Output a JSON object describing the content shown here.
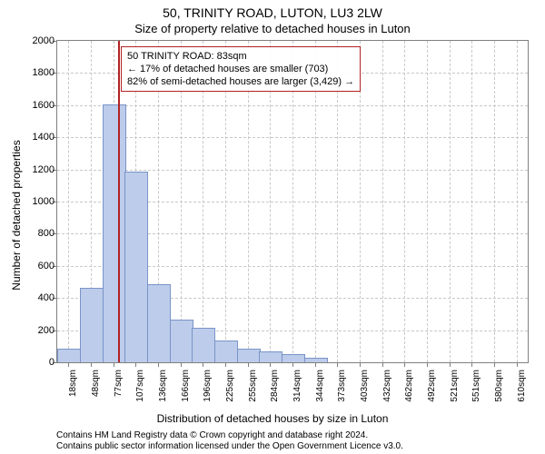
{
  "title_line1": "50, TRINITY ROAD, LUTON, LU3 2LW",
  "title_line2": "Size of property relative to detached houses in Luton",
  "y_axis_label": "Number of detached properties",
  "x_axis_label": "Distribution of detached houses by size in Luton",
  "attribution_line1": "Contains HM Land Registry data © Crown copyright and database right 2024.",
  "attribution_line2": "Contains public sector information licensed under the Open Government Licence v3.0.",
  "chart": {
    "type": "histogram",
    "ylim": [
      0,
      2000
    ],
    "ytick_step": 200,
    "yticks": [
      0,
      200,
      400,
      600,
      800,
      1000,
      1200,
      1400,
      1600,
      1800,
      2000
    ],
    "categories": [
      "18sqm",
      "48sqm",
      "77sqm",
      "107sqm",
      "136sqm",
      "166sqm",
      "196sqm",
      "225sqm",
      "255sqm",
      "284sqm",
      "314sqm",
      "344sqm",
      "373sqm",
      "403sqm",
      "432sqm",
      "462sqm",
      "492sqm",
      "521sqm",
      "551sqm",
      "580sqm",
      "610sqm"
    ],
    "values": [
      80,
      460,
      1600,
      1180,
      480,
      260,
      210,
      130,
      80,
      60,
      45,
      25,
      0,
      0,
      0,
      0,
      0,
      0,
      0,
      0,
      0
    ],
    "bar_fill": "#bcccea",
    "bar_stroke": "#7a94c8",
    "background_color": "#ffffff",
    "grid_color": "#c8c8c8",
    "axis_color": "#808080",
    "title_fontsize": 14,
    "subtitle_fontsize": 13,
    "label_fontsize": 12,
    "tick_fontsize": 11,
    "xtick_fontsize": 10,
    "marker": {
      "position_sqm": 83,
      "color": "#b22222"
    },
    "info_box": {
      "line1": "50 TRINITY ROAD: 83sqm",
      "line2": "← 17% of detached houses are smaller (703)",
      "line3": "82% of semi-detached houses are larger (3,429) →",
      "border_color": "#b22222",
      "fontsize": 11
    }
  }
}
